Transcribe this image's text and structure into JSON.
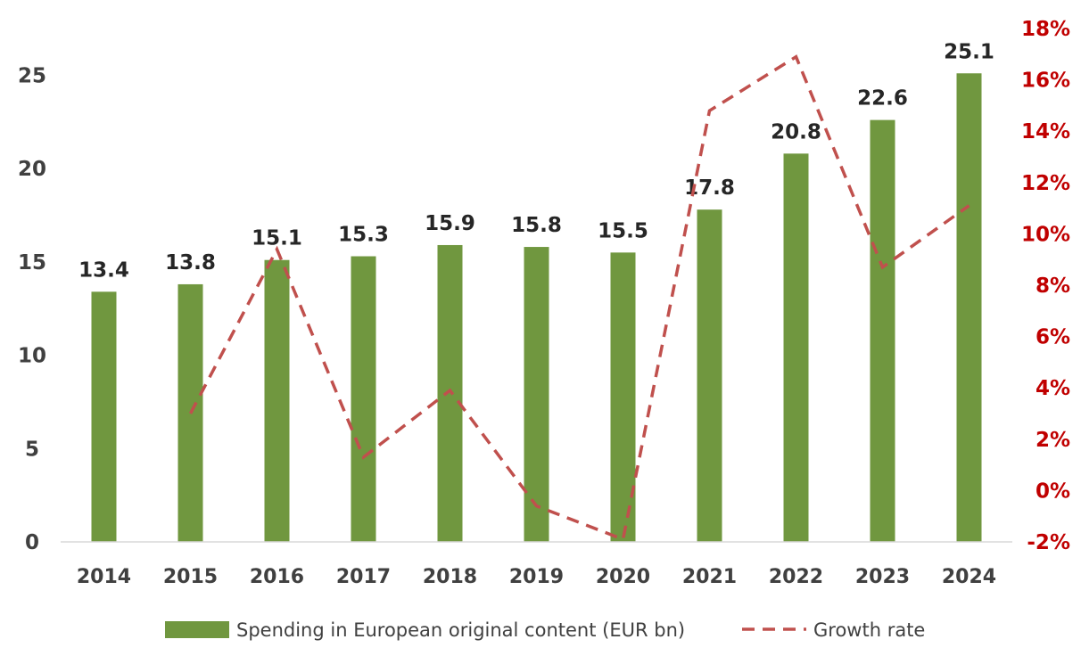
{
  "chart_data": {
    "type": "bar",
    "title": "",
    "xlabel": "",
    "ylabel": "",
    "categories": [
      "2014",
      "2015",
      "2016",
      "2017",
      "2018",
      "2019",
      "2020",
      "2021",
      "2022",
      "2023",
      "2024"
    ],
    "series": [
      {
        "name": "Spending in European original content (EUR bn)",
        "type": "bar",
        "axis": "left",
        "values": [
          13.4,
          13.8,
          15.1,
          15.3,
          15.9,
          15.8,
          15.5,
          17.8,
          20.8,
          22.6,
          25.1
        ],
        "labels": [
          "13.4",
          "13.8",
          "15.1",
          "15.3",
          "15.9",
          "15.8",
          "15.5",
          "17.8",
          "20.8",
          "22.6",
          "25.1"
        ],
        "color": "#70973f"
      },
      {
        "name": "Growth rate",
        "type": "line",
        "style": "dashed",
        "axis": "right",
        "values": [
          null,
          3.0,
          9.4,
          1.3,
          3.9,
          -0.6,
          -1.9,
          14.8,
          16.9,
          8.7,
          11.1
        ],
        "color": "#c0504d"
      }
    ],
    "ylim": [
      0,
      27.5
    ],
    "yticks": [
      0,
      5,
      10,
      15,
      20,
      25
    ],
    "y2lim": [
      -2,
      18
    ],
    "y2ticks": [
      "-2%",
      "0%",
      "2%",
      "4%",
      "6%",
      "8%",
      "10%",
      "12%",
      "14%",
      "16%",
      "18%"
    ],
    "legend_position": "bottom",
    "grid": false
  }
}
